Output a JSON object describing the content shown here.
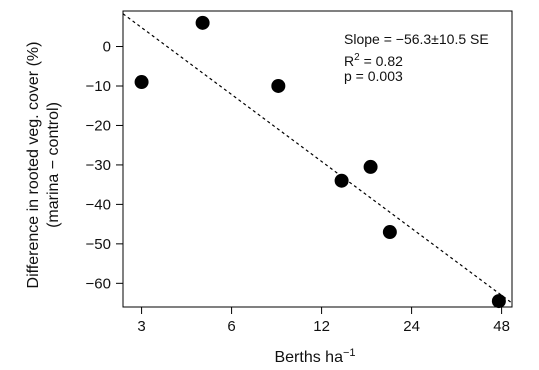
{
  "chart_data": {
    "type": "scatter",
    "xscale": "log",
    "xlim": [
      2.6,
      52
    ],
    "ylim": [
      -66,
      9
    ],
    "xticks": [
      3,
      6,
      12,
      24,
      48
    ],
    "xtick_labels": [
      "3",
      "6",
      "12",
      "24",
      "48"
    ],
    "yticks": [
      0,
      -10,
      -20,
      -30,
      -40,
      -50,
      -60
    ],
    "ytick_labels": [
      "0",
      "−10",
      "−20",
      "−30",
      "−40",
      "−50",
      "−60"
    ],
    "xlabel": "Berths ha",
    "xlabel_sup": "−1",
    "ylabel_line1": "Difference in rooted veg. cover (%)",
    "ylabel_line2": "(marina − control)",
    "points": [
      {
        "x": 3.0,
        "y": -9
      },
      {
        "x": 4.8,
        "y": 6
      },
      {
        "x": 8.6,
        "y": -10
      },
      {
        "x": 14.0,
        "y": -34
      },
      {
        "x": 17.5,
        "y": -30.5
      },
      {
        "x": 20.3,
        "y": -47
      },
      {
        "x": 47.0,
        "y": -64.5
      }
    ],
    "fit_line": {
      "x": [
        2.6,
        52
      ],
      "y": [
        8.3,
        -65
      ]
    },
    "annotations": {
      "slope": "Slope = −56.3±10.5 SE",
      "r2_prefix": "R",
      "r2_sup": "2",
      "r2_value": " = 0.82",
      "p": "p = 0.003"
    },
    "grid": false,
    "legend": "none"
  }
}
